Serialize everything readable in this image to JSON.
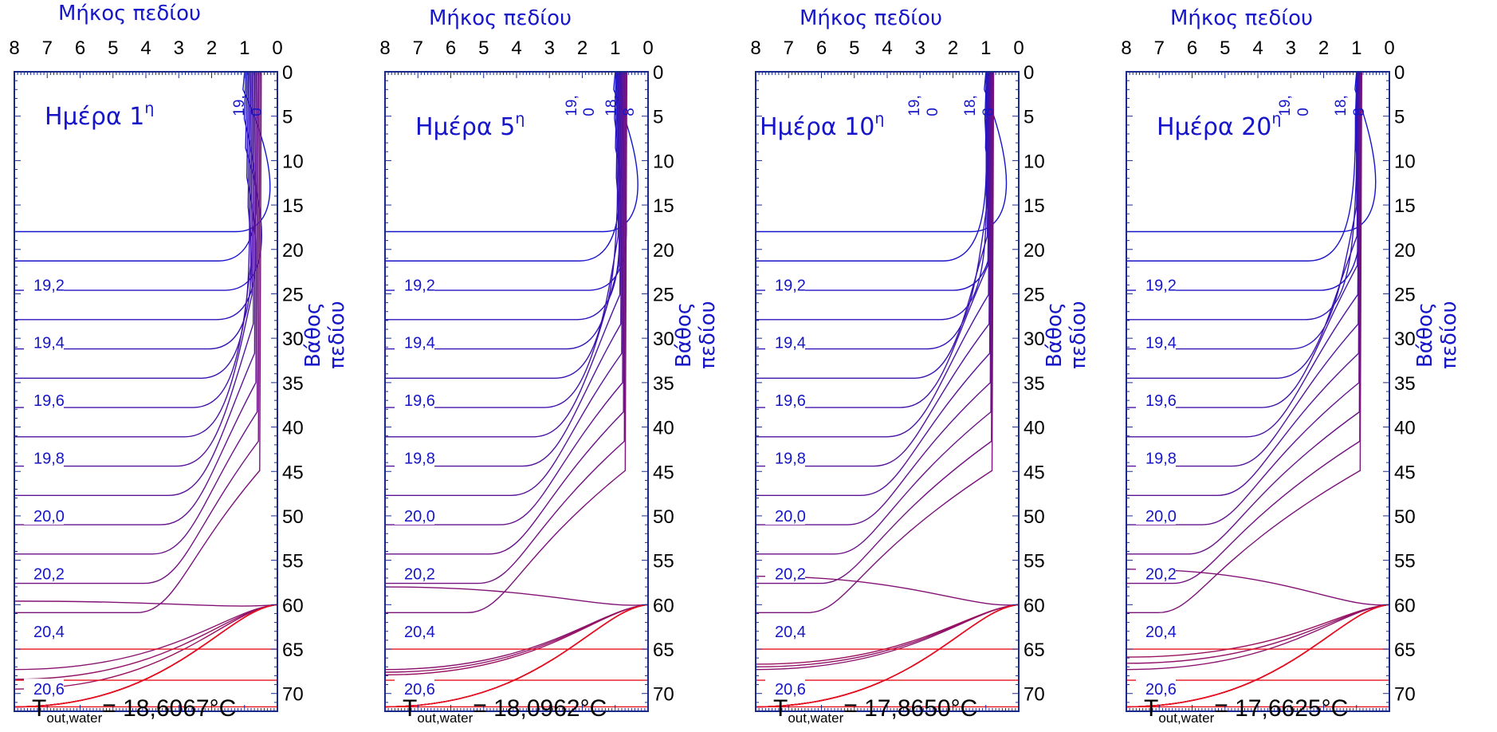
{
  "x_axis_title": "Μήκος πεδίου",
  "y_axis_title_line1": "Βάθος",
  "y_axis_title_line2": "πεδίου",
  "ordinal_suffix": "η",
  "tout_prefix": "T",
  "tout_subscript": "out,water",
  "tout_separator": "= ",
  "colors": {
    "axis": "#1a2a8c",
    "label": "#1616c8",
    "cold_contour": "#1414d0",
    "warm_contour": "#e8101e"
  },
  "chart_data": [
    {
      "type": "contour",
      "day": "Ημέρα 1",
      "outlet_temperature": "18,6067°C",
      "x_ticks": [
        "8",
        "7",
        "6",
        "5",
        "4",
        "3",
        "2",
        "1",
        "0"
      ],
      "y_ticks": [
        "0",
        "5",
        "10",
        "15",
        "20",
        "25",
        "30",
        "35",
        "40",
        "45",
        "50",
        "55",
        "60",
        "65",
        "70"
      ],
      "xlim": [
        8,
        0
      ],
      "ylim": [
        0,
        72
      ],
      "contour_labels_left": [
        "19,2",
        "19,4",
        "19,6",
        "19,8",
        "20,0",
        "20,2",
        "20,4",
        "20,6"
      ],
      "contour_labels_top": [
        "19,",
        "0"
      ]
    },
    {
      "type": "contour",
      "day": "Ημέρα 5",
      "outlet_temperature": "18,0962°C",
      "x_ticks": [
        "8",
        "7",
        "6",
        "5",
        "4",
        "3",
        "2",
        "1",
        "0"
      ],
      "y_ticks": [
        "0",
        "5",
        "10",
        "15",
        "20",
        "25",
        "30",
        "35",
        "40",
        "45",
        "50",
        "55",
        "60",
        "65",
        "70"
      ],
      "xlim": [
        8,
        0
      ],
      "ylim": [
        0,
        72
      ],
      "contour_labels_left": [
        "19,2",
        "19,4",
        "19,6",
        "19,8",
        "20,0",
        "20,2",
        "20,4",
        "20,6"
      ],
      "contour_labels_top": [
        "19,",
        "0",
        "18,",
        "8"
      ]
    },
    {
      "type": "contour",
      "day": "Ημέρα 10",
      "outlet_temperature": "17,8650°C",
      "x_ticks": [
        "8",
        "7",
        "6",
        "5",
        "4",
        "3",
        "2",
        "1",
        "0"
      ],
      "y_ticks": [
        "0",
        "5",
        "10",
        "15",
        "20",
        "25",
        "30",
        "35",
        "40",
        "45",
        "50",
        "55",
        "60",
        "65",
        "70"
      ],
      "xlim": [
        8,
        0
      ],
      "ylim": [
        0,
        72
      ],
      "contour_labels_left": [
        "19,2",
        "19,4",
        "19,6",
        "19,8",
        "20,0",
        "20,2",
        "20,4",
        "20,6"
      ],
      "contour_labels_top": [
        "19,",
        "0",
        "18,",
        "8"
      ]
    },
    {
      "type": "contour",
      "day": "Ημέρα 20",
      "outlet_temperature": "17,6625°C",
      "x_ticks": [
        "8",
        "7",
        "6",
        "5",
        "4",
        "3",
        "2",
        "1",
        "0"
      ],
      "y_ticks": [
        "0",
        "5",
        "10",
        "15",
        "20",
        "25",
        "30",
        "35",
        "40",
        "45",
        "50",
        "55",
        "60",
        "65",
        "70"
      ],
      "xlim": [
        8,
        0
      ],
      "ylim": [
        0,
        72
      ],
      "contour_labels_left": [
        "19,2",
        "19,4",
        "19,6",
        "19,8",
        "20,0",
        "20,2",
        "20,4",
        "20,6"
      ],
      "contour_labels_top": [
        "19,",
        "0",
        "18,",
        "8"
      ]
    }
  ]
}
